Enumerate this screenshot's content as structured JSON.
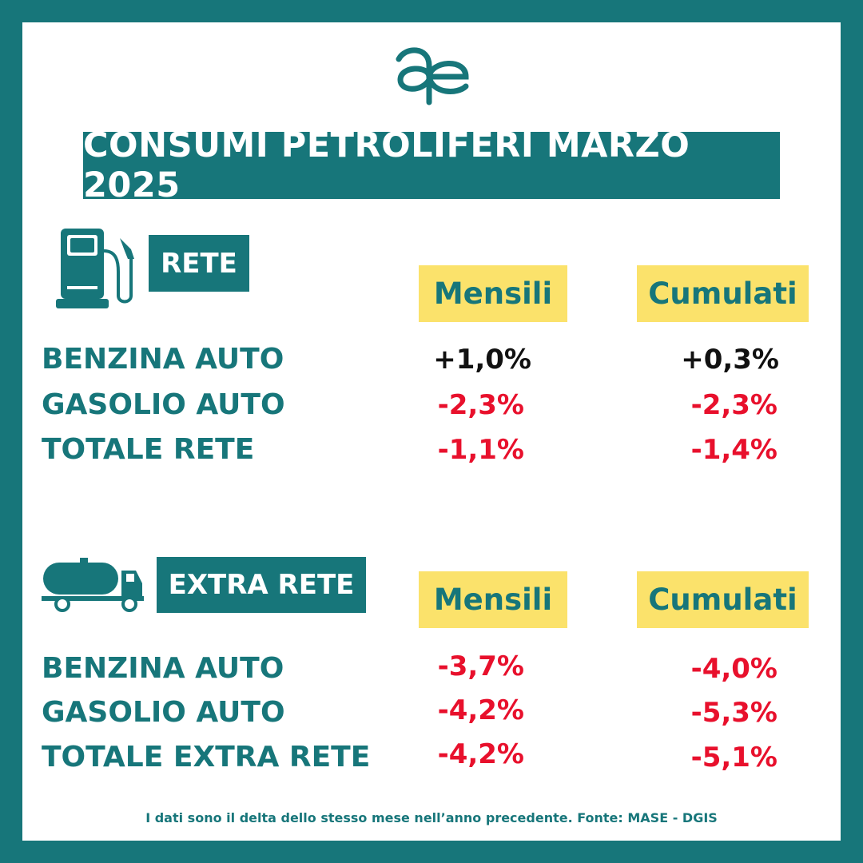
{
  "logo": {
    "icon": "ae-ligature-logo"
  },
  "title": "CONSUMI PETROLIFERI MARZO 2025",
  "colors": {
    "teal": "#17767a",
    "yellow": "#fbe26b",
    "negative": "#e8102c",
    "positive": "#111111"
  },
  "sections": [
    {
      "tag": "RETE",
      "icon": "fuel-pump-icon",
      "col_monthly": "Mensili",
      "col_cumulative": "Cumulati",
      "rows": [
        {
          "label": "BENZINA AUTO",
          "monthly": "+1,0%",
          "cumulative": "+0,3%"
        },
        {
          "label": "GASOLIO AUTO",
          "monthly": "-2,3%",
          "cumulative": "-2,3%"
        },
        {
          "label": "TOTALE RETE",
          "monthly": "-1,1%",
          "cumulative": "-1,4%"
        }
      ]
    },
    {
      "tag": "EXTRA RETE",
      "icon": "tanker-truck-icon",
      "col_monthly": "Mensili",
      "col_cumulative": "Cumulati",
      "rows": [
        {
          "label": "BENZINA AUTO",
          "monthly": "-3,7%",
          "cumulative": "-4,0%"
        },
        {
          "label": "GASOLIO AUTO",
          "monthly": "-4,2%",
          "cumulative": "-5,3%"
        },
        {
          "label": "TOTALE EXTRA RETE",
          "monthly": "-4,2%",
          "cumulative": "-5,1%"
        }
      ]
    }
  ],
  "footnote": "I dati sono il delta dello stesso mese nell’anno precedente. Fonte: MASE - DGIS"
}
